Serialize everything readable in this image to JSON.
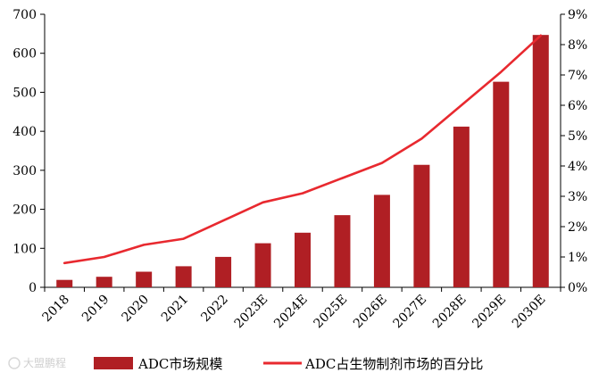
{
  "chart_data": {
    "type": "bar+line",
    "categories": [
      "2018",
      "2019",
      "2020",
      "2021",
      "2022",
      "2023E",
      "2024E",
      "2025E",
      "2026E",
      "2027E",
      "2028E",
      "2029E",
      "2030E"
    ],
    "series": [
      {
        "name": "ADC市场规模",
        "type": "bar",
        "axis": "left",
        "color": "#b01f24",
        "values": [
          19,
          27,
          40,
          54,
          78,
          113,
          140,
          185,
          237,
          314,
          412,
          527,
          647
        ]
      },
      {
        "name": "ADC占生物制剂市场的百分比",
        "type": "line",
        "axis": "right",
        "color": "#e8292f",
        "values": [
          0.8,
          1.0,
          1.4,
          1.6,
          2.2,
          2.8,
          3.1,
          3.6,
          4.1,
          4.9,
          6.0,
          7.1,
          8.3
        ]
      }
    ],
    "y_left": {
      "min": 0,
      "max": 700,
      "step": 100,
      "ticks": [
        "0",
        "100",
        "200",
        "300",
        "400",
        "500",
        "600",
        "700"
      ]
    },
    "y_right": {
      "min": 0,
      "max": 9,
      "step": 1,
      "ticks": [
        "0%",
        "1%",
        "2%",
        "3%",
        "4%",
        "5%",
        "6%",
        "7%",
        "8%",
        "9%"
      ]
    },
    "legend_position": "bottom",
    "grid": false
  },
  "watermark": "大盟鹏程"
}
